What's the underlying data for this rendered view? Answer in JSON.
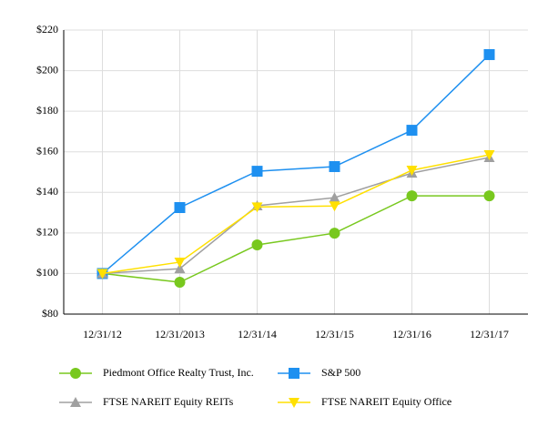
{
  "chart_data": {
    "type": "line",
    "categories": [
      "12/31/12",
      "12/31/2013",
      "12/31/14",
      "12/31/15",
      "12/31/16",
      "12/31/17"
    ],
    "series": [
      {
        "name": "Piedmont Office Realty Trust, Inc.",
        "color": "#78c81e",
        "marker": "circle",
        "values": [
          100,
          95.7,
          114.1,
          119.9,
          138.3,
          138.3
        ]
      },
      {
        "name": "S&P 500",
        "color": "#1e90f0",
        "marker": "square",
        "values": [
          100,
          132.5,
          150.4,
          152.7,
          170.6,
          207.9
        ]
      },
      {
        "name": "FTSE NAREIT Equity REITs",
        "color": "#a0a0a0",
        "marker": "triangle-up",
        "values": [
          100,
          102.4,
          133.4,
          137.4,
          149.5,
          157.2
        ]
      },
      {
        "name": "FTSE NAREIT Equity Office",
        "color": "#ffe000",
        "marker": "triangle-down",
        "values": [
          100,
          105.6,
          132.8,
          133.3,
          150.9,
          158.5
        ]
      }
    ],
    "ylim": [
      80,
      220
    ],
    "yticks": [
      {
        "value": 80,
        "label": "$80"
      },
      {
        "value": 100,
        "label": "$100"
      },
      {
        "value": 120,
        "label": "$120"
      },
      {
        "value": 140,
        "label": "$140"
      },
      {
        "value": 160,
        "label": "$160"
      },
      {
        "value": 180,
        "label": "$180"
      },
      {
        "value": 200,
        "label": "$200"
      },
      {
        "value": 220,
        "label": "$220"
      }
    ],
    "grid": true
  }
}
